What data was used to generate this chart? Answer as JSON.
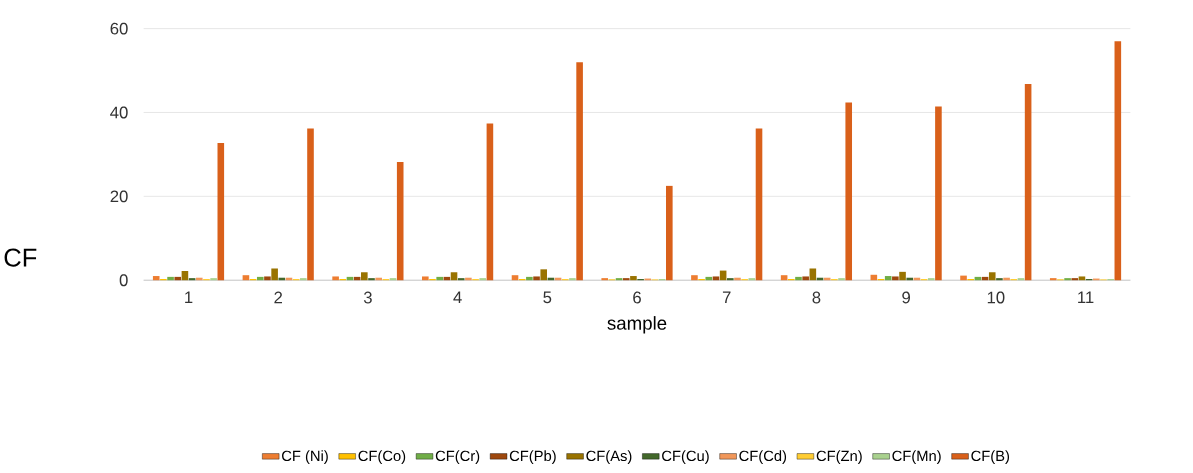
{
  "chart_data": {
    "type": "bar",
    "xlabel": "sample",
    "ylabel": "CF",
    "categories": [
      "1",
      "2",
      "3",
      "4",
      "5",
      "6",
      "7",
      "8",
      "9",
      "10",
      "11"
    ],
    "ylim": [
      0,
      60
    ],
    "yticks": [
      0,
      20,
      40,
      60
    ],
    "grid": "y",
    "legend": "bottom",
    "series": [
      {
        "name": "CF (Ni)",
        "color": "#ed7d31",
        "values": [
          1.0,
          1.2,
          0.9,
          0.9,
          1.2,
          0.5,
          1.2,
          1.2,
          1.3,
          1.1,
          0.5
        ]
      },
      {
        "name": "CF(Co)",
        "color": "#ffc000",
        "values": [
          0.3,
          0.3,
          0.3,
          0.3,
          0.3,
          0.2,
          0.3,
          0.3,
          0.3,
          0.3,
          0.2
        ]
      },
      {
        "name": "CF(Cr)",
        "color": "#70ad47",
        "values": [
          0.8,
          0.8,
          0.8,
          0.8,
          0.8,
          0.5,
          0.8,
          0.8,
          1.0,
          0.8,
          0.5
        ]
      },
      {
        "name": "CF(Pb)",
        "color": "#9e480e",
        "values": [
          0.8,
          0.9,
          0.8,
          0.8,
          0.9,
          0.5,
          0.9,
          0.9,
          0.9,
          0.8,
          0.5
        ]
      },
      {
        "name": "CF(As)",
        "color": "#997300",
        "values": [
          2.2,
          2.8,
          1.9,
          1.9,
          2.6,
          1.0,
          2.3,
          2.8,
          2.0,
          1.9,
          0.9
        ]
      },
      {
        "name": "CF(Cu)",
        "color": "#43682b",
        "values": [
          0.5,
          0.6,
          0.5,
          0.5,
          0.6,
          0.3,
          0.5,
          0.6,
          0.6,
          0.5,
          0.3
        ]
      },
      {
        "name": "CF(Cd)",
        "color": "#f1975a",
        "values": [
          0.6,
          0.6,
          0.6,
          0.6,
          0.6,
          0.4,
          0.6,
          0.6,
          0.6,
          0.6,
          0.4
        ]
      },
      {
        "name": "CF(Zn)",
        "color": "#ffcd33",
        "values": [
          0.3,
          0.3,
          0.3,
          0.3,
          0.3,
          0.2,
          0.3,
          0.3,
          0.3,
          0.3,
          0.2
        ]
      },
      {
        "name": "CF(Mn)",
        "color": "#a9d18e",
        "values": [
          0.5,
          0.5,
          0.5,
          0.5,
          0.5,
          0.3,
          0.5,
          0.5,
          0.5,
          0.5,
          0.3
        ]
      },
      {
        "name": "CF(B)",
        "color": "#d9601a",
        "values": [
          32.7,
          36.2,
          28.2,
          37.4,
          52.0,
          22.5,
          36.2,
          42.4,
          41.4,
          46.8,
          57.0
        ]
      }
    ]
  }
}
